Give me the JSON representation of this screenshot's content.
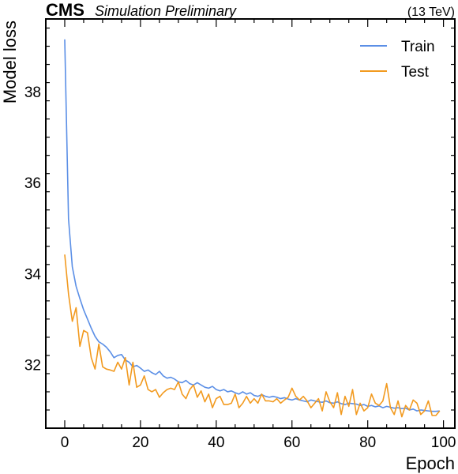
{
  "header": {
    "experiment": "CMS",
    "status": "Simulation Preliminary",
    "energy": "(13 TeV)"
  },
  "colors": {
    "train": "#5b8fe6",
    "test": "#f29a1f",
    "axis": "#000000"
  },
  "chart_data": {
    "type": "line",
    "title": "",
    "xlabel": "Epoch",
    "ylabel": "Model loss",
    "xlim": [
      -5,
      103
    ],
    "ylim": [
      30.6,
      39.6
    ],
    "xticks": [
      0,
      20,
      40,
      60,
      80,
      100
    ],
    "yticks": [
      32,
      34,
      36,
      38
    ],
    "grid": false,
    "legend_position": "top-right",
    "series": [
      {
        "name": "Train",
        "color_key": "train",
        "x": [
          0,
          1,
          2,
          3,
          4,
          5,
          6,
          7,
          8,
          9,
          10,
          11,
          12,
          13,
          14,
          15,
          16,
          17,
          18,
          19,
          20,
          21,
          22,
          23,
          24,
          25,
          26,
          27,
          28,
          29,
          30,
          31,
          32,
          33,
          34,
          35,
          36,
          37,
          38,
          39,
          40,
          41,
          42,
          43,
          44,
          45,
          46,
          47,
          48,
          49,
          50,
          51,
          52,
          53,
          54,
          55,
          56,
          57,
          58,
          59,
          60,
          61,
          62,
          63,
          64,
          65,
          66,
          67,
          68,
          69,
          70,
          71,
          72,
          73,
          74,
          75,
          76,
          77,
          78,
          79,
          80,
          81,
          82,
          83,
          84,
          85,
          86,
          87,
          88,
          89,
          90,
          91,
          92,
          93,
          94,
          95,
          96,
          97,
          98,
          99
        ],
        "values": [
          39.15,
          35.2,
          34.15,
          33.72,
          33.45,
          33.2,
          33.0,
          32.8,
          32.62,
          32.5,
          32.45,
          32.38,
          32.28,
          32.15,
          32.2,
          32.22,
          32.1,
          32.05,
          31.95,
          31.98,
          31.92,
          31.85,
          31.88,
          31.82,
          31.78,
          31.85,
          31.75,
          31.7,
          31.72,
          31.68,
          31.62,
          31.6,
          31.65,
          31.58,
          31.55,
          31.6,
          31.55,
          31.5,
          31.48,
          31.52,
          31.45,
          31.42,
          31.45,
          31.4,
          31.42,
          31.38,
          31.35,
          31.4,
          31.35,
          31.38,
          31.32,
          31.3,
          31.34,
          31.3,
          31.28,
          31.3,
          31.28,
          31.25,
          31.27,
          31.24,
          31.22,
          31.25,
          31.22,
          31.2,
          31.18,
          31.22,
          31.2,
          31.18,
          31.17,
          31.2,
          31.16,
          31.15,
          31.18,
          31.14,
          31.12,
          31.15,
          31.14,
          31.13,
          31.1,
          31.12,
          31.08,
          31.1,
          31.07,
          31.09,
          31.05,
          31.08,
          31.06,
          31.04,
          31.05,
          31.03,
          31.04,
          31.0,
          31.02,
          30.98,
          31.0,
          30.99,
          30.98,
          30.97,
          30.97,
          30.98
        ]
      },
      {
        "name": "Test",
        "color_key": "test",
        "x": [
          0,
          1,
          2,
          3,
          4,
          5,
          6,
          7,
          8,
          9,
          10,
          11,
          12,
          13,
          14,
          15,
          16,
          17,
          18,
          19,
          20,
          21,
          22,
          23,
          24,
          25,
          26,
          27,
          28,
          29,
          30,
          31,
          32,
          33,
          34,
          35,
          36,
          37,
          38,
          39,
          40,
          41,
          42,
          43,
          44,
          45,
          46,
          47,
          48,
          49,
          50,
          51,
          52,
          53,
          54,
          55,
          56,
          57,
          58,
          59,
          60,
          61,
          62,
          63,
          64,
          65,
          66,
          67,
          68,
          69,
          70,
          71,
          72,
          73,
          74,
          75,
          76,
          77,
          78,
          79,
          80,
          81,
          82,
          83,
          84,
          85,
          86,
          87,
          88,
          89,
          90,
          91,
          92,
          93,
          94,
          95,
          96,
          97,
          98,
          99
        ],
        "values": [
          34.42,
          33.55,
          32.95,
          33.25,
          32.4,
          32.75,
          32.7,
          32.15,
          31.9,
          32.45,
          31.95,
          31.9,
          31.88,
          31.85,
          32.05,
          31.9,
          32.15,
          31.55,
          32.05,
          31.5,
          31.55,
          31.75,
          31.45,
          31.4,
          31.45,
          31.28,
          31.38,
          31.45,
          31.48,
          31.45,
          31.62,
          31.35,
          31.25,
          31.45,
          31.55,
          31.28,
          31.42,
          31.18,
          31.35,
          31.05,
          31.25,
          31.3,
          31.12,
          31.12,
          31.15,
          31.35,
          31.05,
          31.15,
          31.3,
          31.15,
          31.25,
          31.15,
          31.35,
          31.2,
          31.2,
          31.18,
          31.25,
          31.15,
          31.22,
          31.28,
          31.48,
          31.3,
          31.22,
          31.3,
          31.2,
          31.05,
          31.15,
          31.25,
          30.98,
          31.4,
          31.18,
          31.05,
          31.38,
          30.9,
          31.3,
          31.08,
          31.45,
          30.9,
          31.15,
          30.98,
          31.05,
          31.35,
          31.15,
          31.1,
          31.2,
          31.58,
          31.05,
          30.9,
          31.2,
          30.85,
          31.1,
          31.0,
          31.22,
          31.15,
          30.9,
          30.98,
          31.2,
          30.88,
          30.88,
          30.98
        ]
      }
    ]
  }
}
